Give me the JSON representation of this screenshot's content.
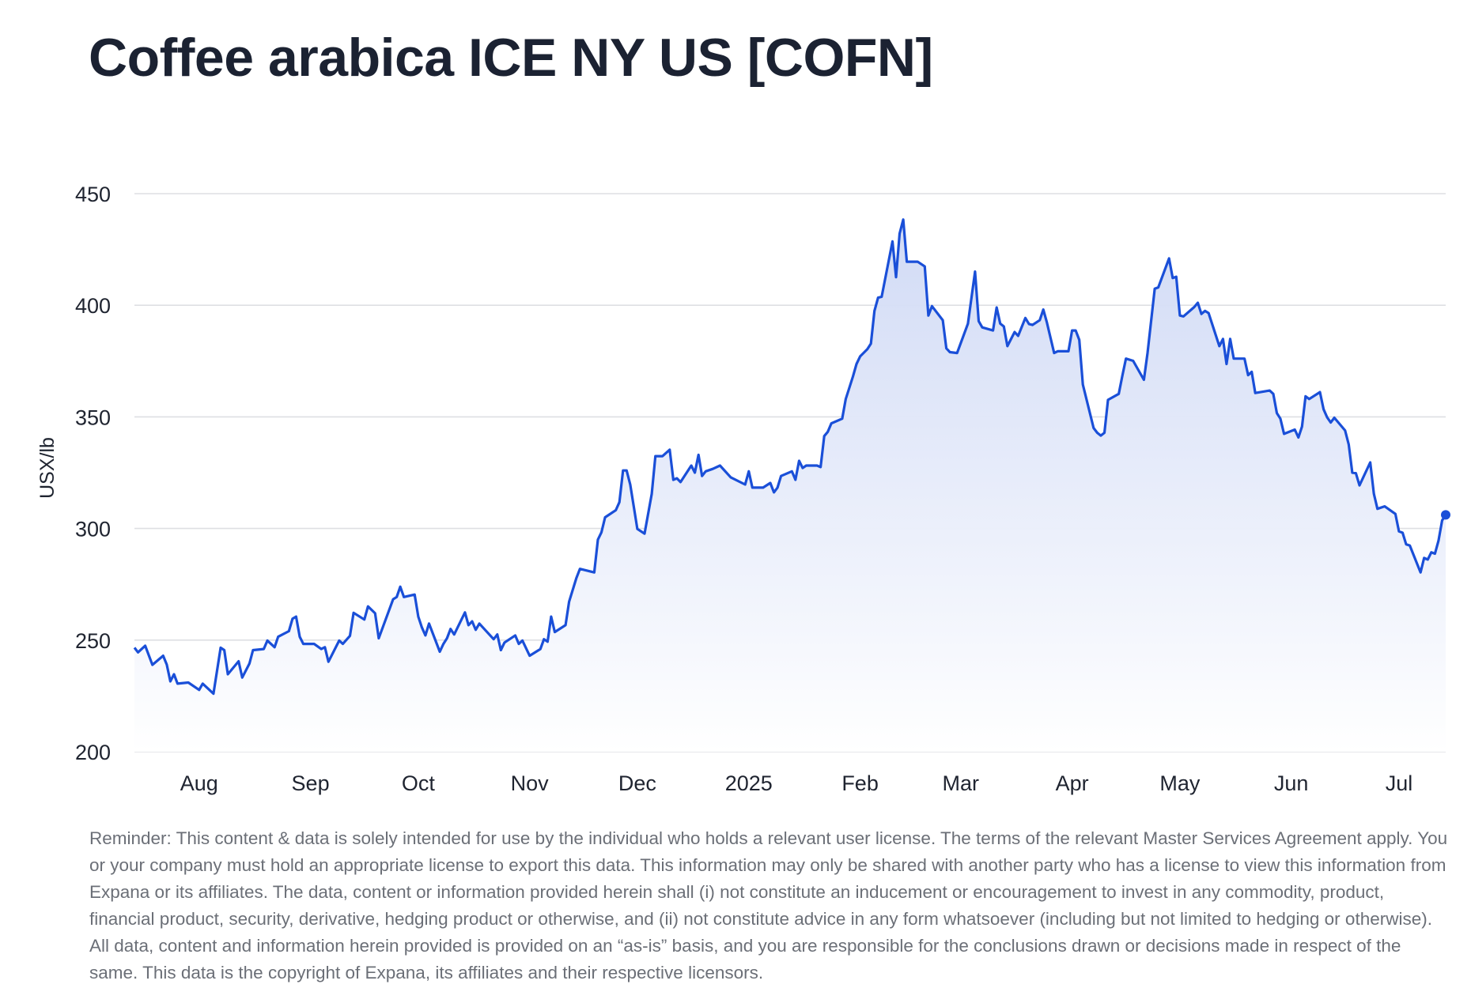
{
  "title": "Coffee arabica ICE NY US [COFN]",
  "disclaimer": "Reminder: This content & data is solely intended for use by the individual who holds a relevant user license. The terms of the relevant Master Services Agreement apply. You or your company must hold an appropriate license to export this data. This information may only be shared with another party who has a license to view this information from Expana or its affiliates. The data, content or information provided herein shall (i) not constitute an inducement or encouragement to invest in any commodity, product, financial product, security, derivative, hedging product or otherwise, and (ii) not constitute advice in any form whatsoever (including but not limited to hedging or otherwise). All data, content and information herein provided is provided on an “as-is” basis, and you are responsible for the conclusions drawn or decisions made in respect of the same. This data is the copyright of Expana, its affiliates and their respective licensors.",
  "colors": {
    "line": "#1a4fd8",
    "fill": "#dfe5f8",
    "grid": "#dedfe3",
    "title": "#1b2232"
  },
  "chart_data": {
    "type": "area",
    "title": "Coffee arabica ICE NY US [COFN]",
    "xlabel": "",
    "ylabel": "USX/lb",
    "x_unit": "days since 2024-07-14",
    "xlim": [
      0,
      365
    ],
    "ylim": [
      200,
      450
    ],
    "grid": true,
    "yticks": [
      200,
      250,
      300,
      350,
      400,
      450
    ],
    "xticks": [
      {
        "label": "Aug",
        "x": 18
      },
      {
        "label": "Sep",
        "x": 49
      },
      {
        "label": "Oct",
        "x": 79
      },
      {
        "label": "Nov",
        "x": 110
      },
      {
        "label": "Dec",
        "x": 140
      },
      {
        "label": "2025",
        "x": 171
      },
      {
        "label": "Feb",
        "x": 202
      },
      {
        "label": "Mar",
        "x": 230
      },
      {
        "label": "Apr",
        "x": 261
      },
      {
        "label": "May",
        "x": 291
      },
      {
        "label": "Jun",
        "x": 322
      },
      {
        "label": "Jul",
        "x": 352
      }
    ],
    "points": [
      [
        0,
        246.6
      ],
      [
        1,
        244.5
      ],
      [
        3,
        247.5
      ],
      [
        5,
        238.9
      ],
      [
        8,
        243
      ],
      [
        9,
        239
      ],
      [
        10,
        231.5
      ],
      [
        11,
        234.7
      ],
      [
        12,
        230.5
      ],
      [
        15,
        231
      ],
      [
        18,
        227.7
      ],
      [
        19,
        230.5
      ],
      [
        22,
        226
      ],
      [
        24,
        246.6
      ],
      [
        25,
        245.5
      ],
      [
        26,
        234.7
      ],
      [
        29,
        240.5
      ],
      [
        30,
        233.2
      ],
      [
        32,
        239.5
      ],
      [
        33,
        245.5
      ],
      [
        36,
        246
      ],
      [
        37,
        249.8
      ],
      [
        39,
        246.8
      ],
      [
        40,
        251.5
      ],
      [
        43,
        254
      ],
      [
        44,
        259.6
      ],
      [
        45,
        260.5
      ],
      [
        46,
        251.5
      ],
      [
        47,
        248.3
      ],
      [
        50,
        248.3
      ],
      [
        52,
        246
      ],
      [
        53,
        246.8
      ],
      [
        54,
        240.3
      ],
      [
        57,
        249.8
      ],
      [
        58,
        248.3
      ],
      [
        60,
        251.9
      ],
      [
        61,
        262.2
      ],
      [
        64,
        259.2
      ],
      [
        65,
        265.1
      ],
      [
        67,
        262
      ],
      [
        68,
        250.8
      ],
      [
        72,
        268.3
      ],
      [
        73,
        269.3
      ],
      [
        74,
        273.9
      ],
      [
        75,
        269.3
      ],
      [
        78,
        270.4
      ],
      [
        79,
        260.5
      ],
      [
        80,
        255.7
      ],
      [
        81,
        252.1
      ],
      [
        82,
        257.4
      ],
      [
        85,
        244.8
      ],
      [
        86,
        248.3
      ],
      [
        87,
        250.8
      ],
      [
        88,
        255
      ],
      [
        89,
        252.5
      ],
      [
        92,
        262.4
      ],
      [
        93,
        256.7
      ],
      [
        94,
        258.4
      ],
      [
        95,
        254.6
      ],
      [
        96,
        257.4
      ],
      [
        100,
        250.4
      ],
      [
        101,
        252.5
      ],
      [
        102,
        245.5
      ],
      [
        103,
        248.9
      ],
      [
        106,
        252.1
      ],
      [
        107,
        248.3
      ],
      [
        108,
        249.8
      ],
      [
        110,
        243
      ],
      [
        113,
        246
      ],
      [
        114,
        250.4
      ],
      [
        115,
        249.3
      ],
      [
        116,
        260.5
      ],
      [
        117,
        253.6
      ],
      [
        120,
        256.7
      ],
      [
        121,
        267.2
      ],
      [
        123,
        277.7
      ],
      [
        124,
        281.9
      ],
      [
        128,
        280.3
      ],
      [
        129,
        295
      ],
      [
        130,
        298.3
      ],
      [
        131,
        305
      ],
      [
        134,
        308.2
      ],
      [
        135,
        311.8
      ],
      [
        136,
        326
      ],
      [
        137,
        326
      ],
      [
        138,
        319.7
      ],
      [
        140,
        299.8
      ],
      [
        142,
        297.7
      ],
      [
        144,
        315.5
      ],
      [
        145,
        332.4
      ],
      [
        147,
        332.4
      ],
      [
        149,
        335.3
      ],
      [
        150,
        321.8
      ],
      [
        151,
        322.5
      ],
      [
        152,
        320.8
      ],
      [
        155,
        328.2
      ],
      [
        156,
        325
      ],
      [
        157,
        333
      ],
      [
        158,
        323.5
      ],
      [
        159,
        325.6
      ],
      [
        161,
        326.7
      ],
      [
        163,
        328.2
      ],
      [
        166,
        322.9
      ],
      [
        170,
        319.7
      ],
      [
        171,
        325.6
      ],
      [
        172,
        318.3
      ],
      [
        175,
        318.3
      ],
      [
        177,
        320.4
      ],
      [
        178,
        316.2
      ],
      [
        179,
        318.3
      ],
      [
        180,
        323.5
      ],
      [
        183,
        325.6
      ],
      [
        184,
        321.8
      ],
      [
        185,
        330.3
      ],
      [
        186,
        327.1
      ],
      [
        187,
        328.2
      ],
      [
        190,
        328.2
      ],
      [
        191,
        327.5
      ],
      [
        192,
        341.4
      ],
      [
        193,
        343.3
      ],
      [
        194,
        347.1
      ],
      [
        197,
        349.2
      ],
      [
        198,
        358
      ],
      [
        200,
        368.1
      ],
      [
        201,
        373.7
      ],
      [
        202,
        377.1
      ],
      [
        204,
        380.3
      ],
      [
        205,
        382.8
      ],
      [
        206,
        397.5
      ],
      [
        207,
        403.4
      ],
      [
        208,
        403.8
      ],
      [
        211,
        428.6
      ],
      [
        212,
        412.6
      ],
      [
        213,
        432.1
      ],
      [
        214,
        438.4
      ],
      [
        215,
        419.5
      ],
      [
        218,
        419.5
      ],
      [
        220,
        417.4
      ],
      [
        221,
        395.4
      ],
      [
        222,
        399.6
      ],
      [
        225,
        393.3
      ],
      [
        226,
        380.7
      ],
      [
        227,
        379
      ],
      [
        229,
        378.6
      ],
      [
        232,
        391.8
      ],
      [
        234,
        415.1
      ],
      [
        235,
        392.9
      ],
      [
        236,
        390.1
      ],
      [
        239,
        388.7
      ],
      [
        240,
        399
      ],
      [
        241,
        391.8
      ],
      [
        242,
        390.5
      ],
      [
        243,
        381.7
      ],
      [
        245,
        388
      ],
      [
        246,
        386.3
      ],
      [
        248,
        394.3
      ],
      [
        249,
        391.6
      ],
      [
        250,
        391.2
      ],
      [
        252,
        393.3
      ],
      [
        253,
        398.1
      ],
      [
        254,
        392.2
      ],
      [
        256,
        378.6
      ],
      [
        257,
        379.4
      ],
      [
        260,
        379.4
      ],
      [
        261,
        388.7
      ],
      [
        262,
        388.7
      ],
      [
        263,
        384.5
      ],
      [
        264,
        364.5
      ],
      [
        267,
        345
      ],
      [
        268,
        342.9
      ],
      [
        269,
        341.6
      ],
      [
        270,
        342.9
      ],
      [
        271,
        357.6
      ],
      [
        274,
        360.3
      ],
      [
        275,
        368.5
      ],
      [
        276,
        376.1
      ],
      [
        278,
        375.1
      ],
      [
        281,
        366.6
      ],
      [
        282,
        378.6
      ],
      [
        284,
        407.4
      ],
      [
        285,
        408
      ],
      [
        288,
        421
      ],
      [
        289,
        412.2
      ],
      [
        290,
        412.8
      ],
      [
        291,
        395.4
      ],
      [
        292,
        395
      ],
      [
        295,
        399.2
      ],
      [
        296,
        401.1
      ],
      [
        297,
        396.1
      ],
      [
        298,
        397.5
      ],
      [
        299,
        396.5
      ],
      [
        302,
        381.7
      ],
      [
        303,
        384.9
      ],
      [
        304,
        373.7
      ],
      [
        305,
        384.9
      ],
      [
        306,
        376.1
      ],
      [
        309,
        376.1
      ],
      [
        310,
        368.7
      ],
      [
        311,
        370.2
      ],
      [
        312,
        360.7
      ],
      [
        316,
        361.8
      ],
      [
        317,
        360.3
      ],
      [
        318,
        351.7
      ],
      [
        319,
        349.2
      ],
      [
        320,
        342.4
      ],
      [
        323,
        344.3
      ],
      [
        324,
        340.8
      ],
      [
        325,
        345.6
      ],
      [
        326,
        359.2
      ],
      [
        327,
        358
      ],
      [
        330,
        361.1
      ],
      [
        331,
        353.4
      ],
      [
        332,
        349.8
      ],
      [
        333,
        347.5
      ],
      [
        334,
        349.6
      ],
      [
        337,
        343.9
      ],
      [
        338,
        337.6
      ],
      [
        339,
        325
      ],
      [
        340,
        324.8
      ],
      [
        341,
        319.3
      ],
      [
        344,
        329.6
      ],
      [
        345,
        315.5
      ],
      [
        346,
        308.8
      ],
      [
        348,
        309.9
      ],
      [
        351,
        306.5
      ],
      [
        352,
        298.7
      ],
      [
        353,
        298.1
      ],
      [
        354,
        292.9
      ],
      [
        355,
        292.4
      ],
      [
        358,
        280.3
      ],
      [
        359,
        286.8
      ],
      [
        360,
        286.1
      ],
      [
        361,
        289.3
      ],
      [
        362,
        288.7
      ],
      [
        363,
        294.5
      ],
      [
        364,
        303.6
      ],
      [
        365,
        306.1
      ]
    ]
  }
}
